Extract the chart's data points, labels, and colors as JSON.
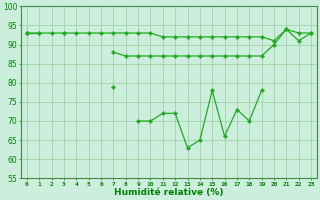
{
  "x": [
    0,
    1,
    2,
    3,
    4,
    5,
    6,
    7,
    8,
    9,
    10,
    11,
    12,
    13,
    14,
    15,
    16,
    17,
    18,
    19,
    20,
    21,
    22,
    23
  ],
  "line_top": [
    93,
    93,
    93,
    93,
    93,
    93,
    93,
    93,
    93,
    93,
    93,
    92,
    92,
    92,
    92,
    92,
    92,
    92,
    92,
    92,
    91,
    94,
    93,
    93
  ],
  "line_mid": [
    93,
    93,
    null,
    93,
    null,
    null,
    null,
    88,
    87,
    87,
    87,
    87,
    87,
    87,
    87,
    87,
    87,
    87,
    87,
    87,
    90,
    94,
    91,
    93
  ],
  "line_bot": [
    93,
    null,
    null,
    null,
    null,
    null,
    null,
    79,
    null,
    70,
    70,
    72,
    72,
    63,
    65,
    78,
    66,
    73,
    70,
    78,
    null,
    null,
    null,
    null
  ],
  "xlabel": "Humidité relative (%)",
  "ylim": [
    55,
    100
  ],
  "xlim": [
    -0.5,
    23.5
  ],
  "yticks": [
    55,
    60,
    65,
    70,
    75,
    80,
    85,
    90,
    95,
    100
  ],
  "xticks": [
    0,
    1,
    2,
    3,
    4,
    5,
    6,
    7,
    8,
    9,
    10,
    11,
    12,
    13,
    14,
    15,
    16,
    17,
    18,
    19,
    20,
    21,
    22,
    23
  ],
  "line_color": "#22aa22",
  "bg_color": "#cceedd",
  "grid_color": "#99cc99"
}
